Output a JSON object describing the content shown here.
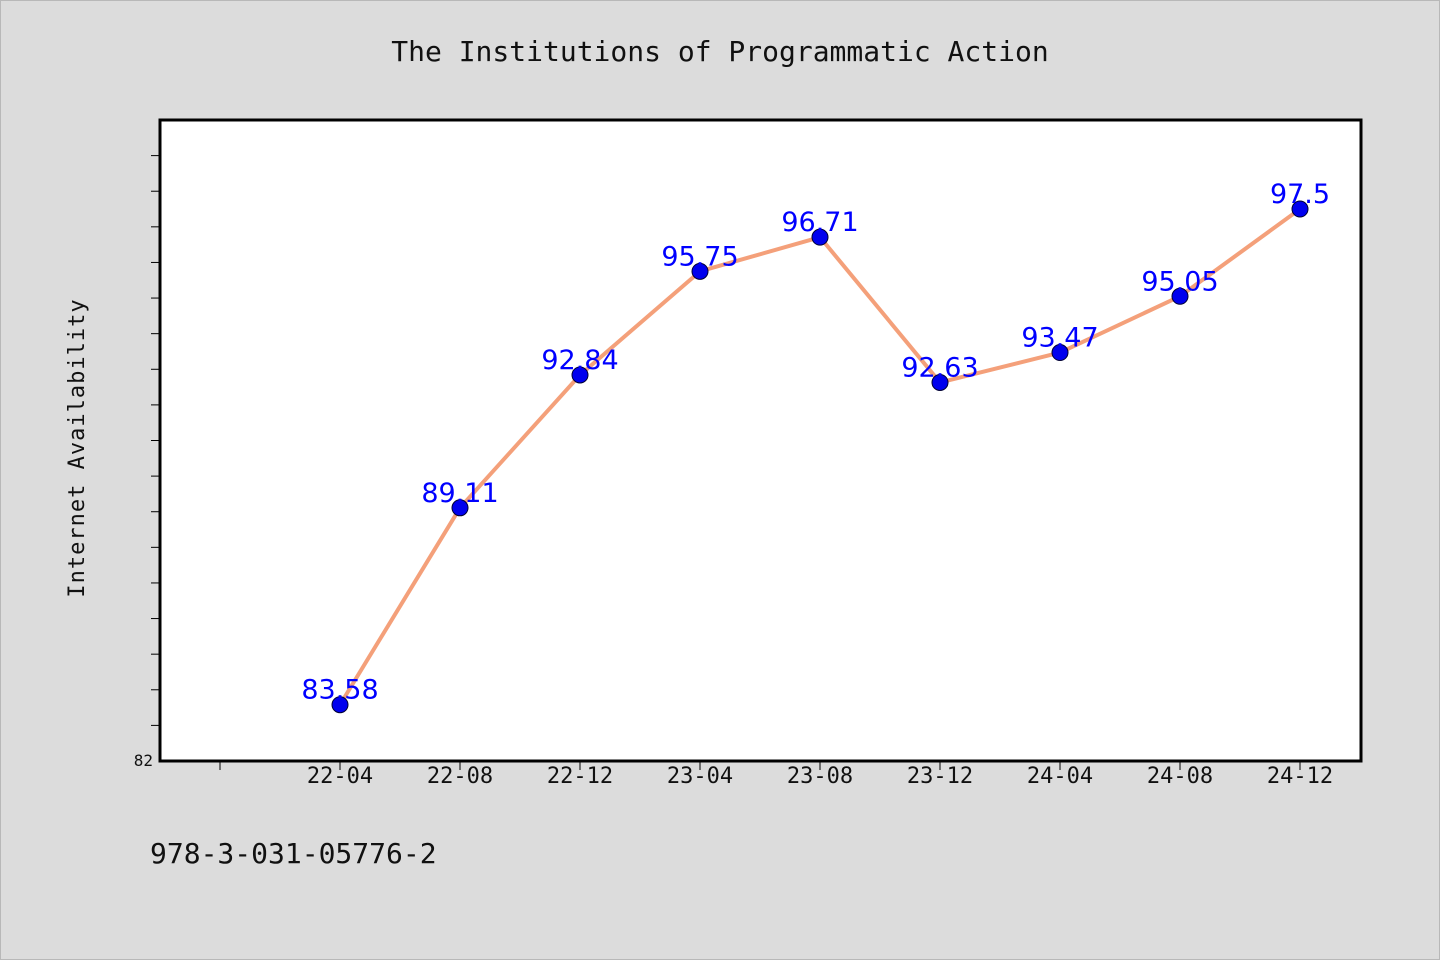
{
  "chart_data": {
    "type": "line",
    "title": "The Institutions of Programmatic Action",
    "xlabel": "",
    "ylabel": "Internet Availability",
    "categories": [
      "22-04",
      "22-08",
      "22-12",
      "23-04",
      "23-08",
      "23-12",
      "24-04",
      "24-08",
      "24-12"
    ],
    "series": [
      {
        "values": [
          83.58,
          89.11,
          92.84,
          95.75,
          96.71,
          92.63,
          93.47,
          95.05,
          97.5
        ],
        "line_color": "#f4a07a",
        "marker_color": "#0000ee"
      }
    ],
    "ylim": [
      82,
      100
    ],
    "ytick_label": "82",
    "label_color": "#0000ff",
    "grid": false
  },
  "footer_text": "978-3-031-05776-2"
}
